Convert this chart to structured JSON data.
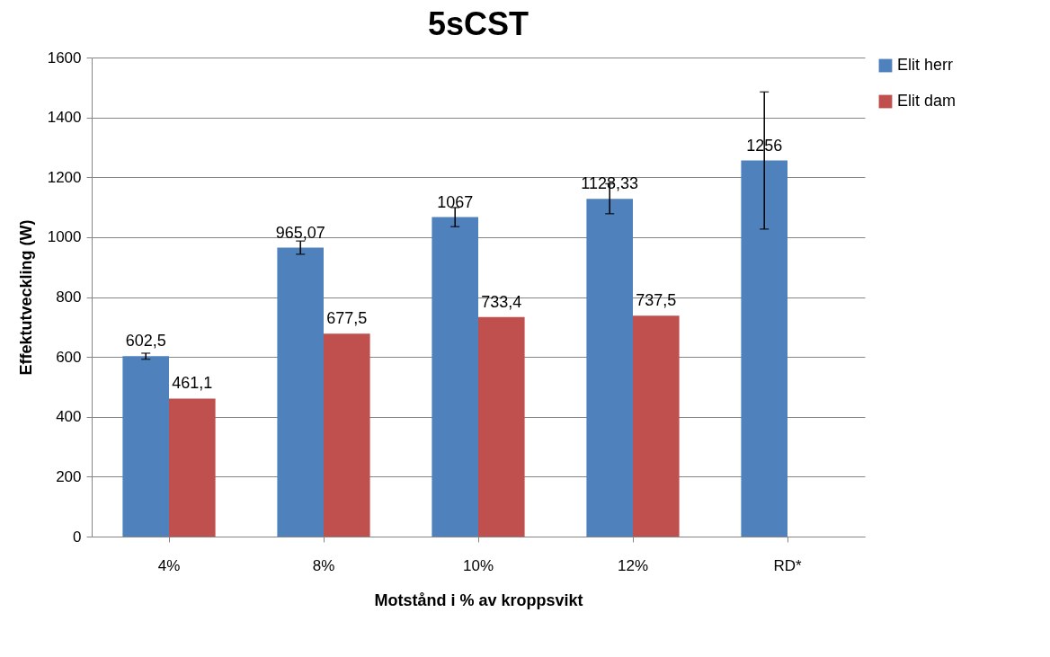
{
  "chart_data": {
    "type": "bar",
    "title": "5sCST",
    "xlabel": "Motstånd i % av kroppsvikt",
    "ylabel": "Effektutveckling (W)",
    "categories": [
      "4%",
      "8%",
      "10%",
      "12%",
      "RD*"
    ],
    "series": [
      {
        "name": "Elit herr",
        "color": "#4f81bd",
        "values": [
          602.5,
          965.07,
          1067,
          1128.33,
          1256
        ],
        "errors": [
          10,
          22,
          32,
          50,
          229
        ],
        "value_labels": [
          "602,5",
          "965,07",
          "1067",
          "1128,33",
          "1256"
        ]
      },
      {
        "name": "Elit dam",
        "color": "#c0504d",
        "values": [
          461.1,
          677.5,
          733.4,
          737.5,
          null
        ],
        "value_labels": [
          "461,1",
          "677,5",
          "733,4",
          "737,5",
          null
        ]
      }
    ],
    "ylim": [
      0,
      1600
    ],
    "yticks": [
      0,
      200,
      400,
      600,
      800,
      1000,
      1200,
      1400,
      1600
    ],
    "grid": "y",
    "legend": "right"
  }
}
